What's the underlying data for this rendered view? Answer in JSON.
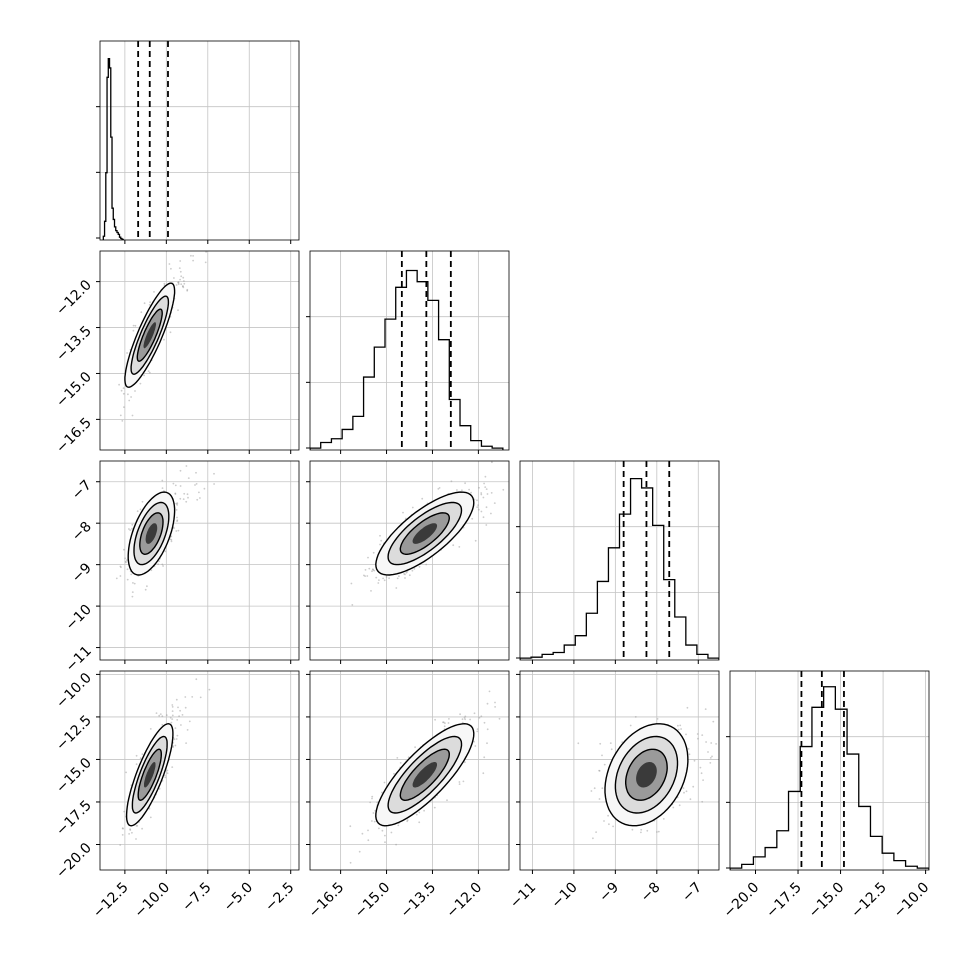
{
  "chart_data": {
    "type": "corner",
    "title": "",
    "parameters": [
      "",
      "",
      "",
      ""
    ],
    "ranges": [
      [
        -14.0,
        -2.0
      ],
      [
        -17.5,
        -11.0
      ],
      [
        -11.3,
        -6.5
      ],
      [
        -21.5,
        -9.8
      ]
    ],
    "axis_ticks": [
      [
        "-12.5",
        "-10.0",
        "-7.5",
        "-5.0",
        "-2.5"
      ],
      [
        "-16.5",
        "-15.0",
        "-13.5",
        "-12.0"
      ],
      [
        "-11",
        "-10",
        "-9",
        "-8",
        "-7"
      ],
      [
        "-20.0",
        "-17.5",
        "-15.0",
        "-12.5",
        "-10.0"
      ]
    ],
    "row_ticks": [
      null,
      [
        "-12.0",
        "-13.5",
        "-15.0",
        "-16.5"
      ],
      [
        "-7",
        "-8",
        "-9",
        "-10",
        "-11"
      ],
      [
        "-10.0",
        "-12.5",
        "-15.0",
        "-17.5",
        "-20.0"
      ]
    ],
    "quantiles": [
      [
        -11.7,
        -11.0,
        -9.9
      ],
      [
        -14.5,
        -13.7,
        -12.9
      ],
      [
        -8.8,
        -8.25,
        -7.7
      ],
      [
        -17.3,
        -16.1,
        -14.8
      ]
    ],
    "histograms": [
      {
        "bins": [
          -13.8,
          -12.6
        ],
        "values": [
          0.02,
          0.1,
          0.36,
          0.87,
          0.97,
          0.92,
          0.55,
          0.17,
          0.11,
          0.07,
          0.05,
          0.04,
          0.03,
          0.015,
          0.008,
          0.003
        ]
      },
      {
        "bins": [
          -17.5,
          -11.2
        ],
        "values": [
          0.01,
          0.04,
          0.06,
          0.11,
          0.18,
          0.39,
          0.55,
          0.7,
          0.87,
          0.96,
          0.9,
          0.8,
          0.59,
          0.27,
          0.13,
          0.05,
          0.02,
          0.01
        ]
      },
      {
        "bins": [
          -11.3,
          -6.5
        ],
        "values": [
          0.01,
          0.015,
          0.03,
          0.04,
          0.08,
          0.13,
          0.25,
          0.42,
          0.6,
          0.78,
          0.97,
          0.92,
          0.72,
          0.43,
          0.23,
          0.08,
          0.03,
          0.01
        ]
      },
      {
        "bins": [
          -21.5,
          -9.8
        ],
        "values": [
          0.01,
          0.03,
          0.07,
          0.12,
          0.21,
          0.42,
          0.66,
          0.87,
          0.98,
          0.86,
          0.62,
          0.34,
          0.18,
          0.09,
          0.05,
          0.02,
          0.01
        ]
      }
    ],
    "pairs": [
      {
        "row": 1,
        "col": 0,
        "mean": [
          -11.0,
          -13.75
        ],
        "sd": [
          0.75,
          0.85
        ],
        "rho": 0.85
      },
      {
        "row": 2,
        "col": 0,
        "mean": [
          -10.9,
          -8.25
        ],
        "sd": [
          0.7,
          0.5
        ],
        "rho": 0.55
      },
      {
        "row": 2,
        "col": 1,
        "mean": [
          -13.75,
          -8.25
        ],
        "sd": [
          0.8,
          0.5
        ],
        "rho": 0.75
      },
      {
        "row": 3,
        "col": 0,
        "mean": [
          -11.0,
          -15.9
        ],
        "sd": [
          0.7,
          1.5
        ],
        "rho": 0.8
      },
      {
        "row": 3,
        "col": 1,
        "mean": [
          -13.75,
          -15.9
        ],
        "sd": [
          0.8,
          1.5
        ],
        "rho": 0.8
      },
      {
        "row": 3,
        "col": 2,
        "mean": [
          -8.25,
          -15.9
        ],
        "sd": [
          0.5,
          1.5
        ],
        "rho": 0.3
      }
    ],
    "contour_levels_sigma": [
      0.5,
      1.0,
      1.5,
      2.0
    ],
    "grid": true
  }
}
